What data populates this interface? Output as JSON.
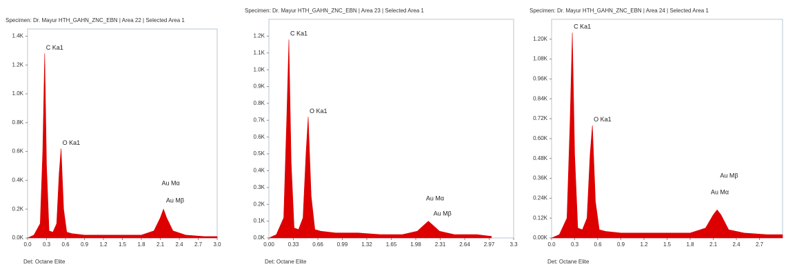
{
  "chart_data": [
    {
      "type": "area",
      "title": "Specimen: Dr. Mayur HTH_GAHN_ZNC_EBN | Area 22 | Selected Area 1",
      "x_label": "Det: Octane Elite",
      "color": "#dd0000",
      "x": [
        0,
        0.1,
        0.2,
        0.24,
        0.27,
        0.3,
        0.34,
        0.4,
        0.46,
        0.5,
        0.53,
        0.57,
        0.62,
        0.7,
        0.9,
        1.2,
        1.5,
        1.8,
        2.0,
        2.1,
        2.15,
        2.2,
        2.3,
        2.5,
        2.8,
        3.0
      ],
      "values": [
        0,
        0.02,
        0.1,
        0.6,
        1.28,
        0.5,
        0.05,
        0.04,
        0.1,
        0.45,
        0.62,
        0.2,
        0.04,
        0.03,
        0.02,
        0.02,
        0.02,
        0.02,
        0.05,
        0.14,
        0.2,
        0.14,
        0.05,
        0.02,
        0.01,
        0.01
      ],
      "xlim": [
        0,
        3.0
      ],
      "xticks": [
        {
          "value": 0,
          "label": "0.0"
        },
        0.3,
        0.6,
        0.9,
        1.2,
        1.5,
        1.8,
        2.1,
        2.4,
        2.7,
        {
          "value": 3,
          "label": "3.0"
        }
      ],
      "ylim": [
        0,
        1.45
      ],
      "yticks": [
        {
          "value": 0,
          "label": "0.0K"
        },
        {
          "value": 0.2,
          "label": "0.2K"
        },
        {
          "value": 0.4,
          "label": "0.4K"
        },
        {
          "value": 0.6,
          "label": "0.6K"
        },
        {
          "value": 0.8,
          "label": "0.8K"
        },
        {
          "value": 1.0,
          "label": "1.0K"
        },
        {
          "value": 1.2,
          "label": "1.2K"
        },
        {
          "value": 1.4,
          "label": "1.4K"
        }
      ],
      "annotations": [
        {
          "text": "C Ka1",
          "x": 0.27,
          "y": 1.28
        },
        {
          "text": "O Ka1",
          "x": 0.53,
          "y": 0.62
        },
        {
          "text": "Au Mα",
          "x": 2.1,
          "y": 0.34
        },
        {
          "text": "Au Mβ",
          "x": 2.17,
          "y": 0.22
        }
      ]
    },
    {
      "type": "area",
      "title": "Specimen: Dr. Mayur HTH_GAHN_ZNC_EBN | Area 23 | Selected Area 1",
      "x_label": "Det: Octane Elite",
      "color": "#dd0000",
      "x": [
        0,
        0.1,
        0.2,
        0.24,
        0.27,
        0.3,
        0.34,
        0.4,
        0.46,
        0.5,
        0.53,
        0.57,
        0.62,
        0.7,
        0.9,
        1.2,
        1.5,
        1.8,
        2.0,
        2.1,
        2.15,
        2.2,
        2.3,
        2.5,
        2.8,
        3.0
      ],
      "values": [
        0,
        0.02,
        0.12,
        0.7,
        1.18,
        0.45,
        0.06,
        0.05,
        0.12,
        0.5,
        0.72,
        0.25,
        0.05,
        0.04,
        0.03,
        0.03,
        0.02,
        0.02,
        0.04,
        0.08,
        0.1,
        0.08,
        0.04,
        0.02,
        0.02,
        0.01
      ],
      "xlim": [
        0,
        3.3
      ],
      "xticks": [
        {
          "value": 0,
          "label": "0.00"
        },
        0.33,
        0.66,
        0.99,
        1.32,
        1.65,
        1.98,
        2.31,
        2.64,
        2.97,
        3.3
      ],
      "ylim": [
        0,
        1.3
      ],
      "yticks": [
        {
          "value": 0,
          "label": "0.0K"
        },
        {
          "value": 0.1,
          "label": "0.1K"
        },
        {
          "value": 0.2,
          "label": "0.2K"
        },
        {
          "value": 0.3,
          "label": "0.3K"
        },
        {
          "value": 0.4,
          "label": "0.4K"
        },
        {
          "value": 0.5,
          "label": "0.5K"
        },
        {
          "value": 0.6,
          "label": "0.6K"
        },
        {
          "value": 0.7,
          "label": "0.7K"
        },
        {
          "value": 0.8,
          "label": "0.8K"
        },
        {
          "value": 0.9,
          "label": "0.9K"
        },
        {
          "value": 1.0,
          "label": "1.0K"
        },
        {
          "value": 1.1,
          "label": "1.1K"
        },
        {
          "value": 1.2,
          "label": "1.2K"
        }
      ],
      "annotations": [
        {
          "text": "C Ka1",
          "x": 0.27,
          "y": 1.18
        },
        {
          "text": "O Ka1",
          "x": 0.53,
          "y": 0.72
        },
        {
          "text": "Au Mα",
          "x": 2.1,
          "y": 0.2
        },
        {
          "text": "Au Mβ",
          "x": 2.2,
          "y": 0.11
        }
      ]
    },
    {
      "type": "area",
      "title": "Specimen: Dr. Mayur HTH_GAHN_ZNC_EBN | Area 24 | Selected Area 1",
      "x_label": "Det: Octane Elite",
      "color": "#dd0000",
      "x": [
        0,
        0.1,
        0.2,
        0.24,
        0.27,
        0.3,
        0.34,
        0.4,
        0.46,
        0.5,
        0.53,
        0.57,
        0.62,
        0.7,
        0.9,
        1.2,
        1.5,
        1.8,
        2.0,
        2.1,
        2.15,
        2.2,
        2.3,
        2.5,
        2.8,
        3.0
      ],
      "values": [
        0,
        0.02,
        0.12,
        0.7,
        1.24,
        0.5,
        0.06,
        0.05,
        0.12,
        0.5,
        0.68,
        0.22,
        0.05,
        0.04,
        0.03,
        0.03,
        0.03,
        0.03,
        0.06,
        0.14,
        0.17,
        0.14,
        0.05,
        0.03,
        0.02,
        0.02
      ],
      "xlim": [
        0,
        3.0
      ],
      "xticks": [
        {
          "value": 0,
          "label": "0.0"
        },
        0.3,
        0.6,
        0.9,
        1.2,
        1.5,
        1.8,
        2.1,
        2.4,
        2.7
      ],
      "ylim": [
        0,
        1.32
      ],
      "yticks": [
        {
          "value": 0,
          "label": "0.00K"
        },
        {
          "value": 0.12,
          "label": "0.12K"
        },
        {
          "value": 0.24,
          "label": "0.24K"
        },
        {
          "value": 0.36,
          "label": "0.36K"
        },
        {
          "value": 0.48,
          "label": "0.48K"
        },
        {
          "value": 0.6,
          "label": "0.60K"
        },
        {
          "value": 0.72,
          "label": "0.72K"
        },
        {
          "value": 0.84,
          "label": "0.84K"
        },
        {
          "value": 0.96,
          "label": "0.96K"
        },
        {
          "value": 1.08,
          "label": "1.08K"
        },
        {
          "value": 1.2,
          "label": "1.20K"
        }
      ],
      "annotations": [
        {
          "text": "C Ka1",
          "x": 0.27,
          "y": 1.24
        },
        {
          "text": "O Ka1",
          "x": 0.53,
          "y": 0.68
        },
        {
          "text": "Au Mα",
          "x": 2.05,
          "y": 0.24
        },
        {
          "text": "Au Mβ",
          "x": 2.17,
          "y": 0.34
        }
      ]
    }
  ]
}
